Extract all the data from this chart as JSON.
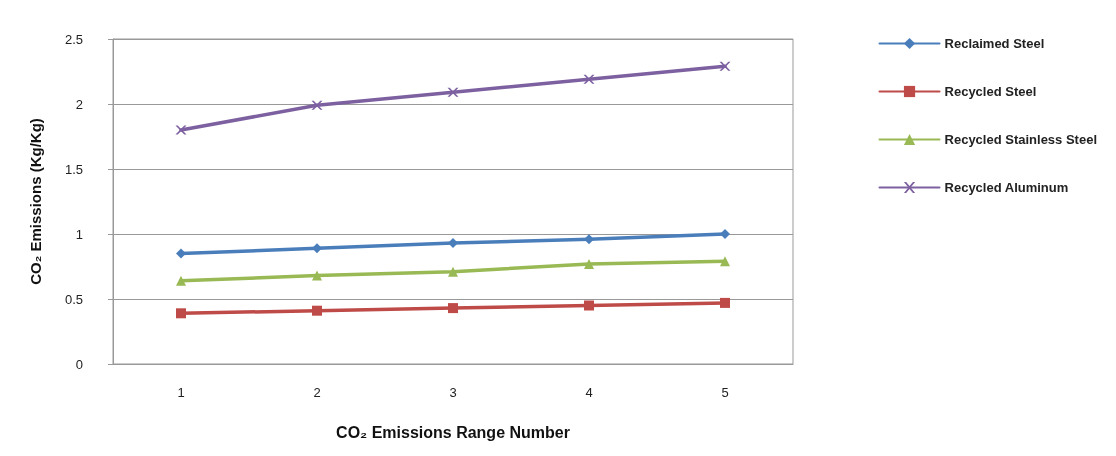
{
  "chart_data": {
    "type": "line",
    "xlabel": "CO₂ Emissions Range Number",
    "ylabel": "CO₂ Emissions (Kg/Kg)",
    "categories": [
      "1",
      "2",
      "3",
      "4",
      "5"
    ],
    "series": [
      {
        "name": "Reclaimed Steel",
        "color": "#4a7ebb",
        "marker": "diamond",
        "values": [
          0.85,
          0.89,
          0.93,
          0.96,
          1.0
        ]
      },
      {
        "name": "Recycled Steel",
        "color": "#be4b48",
        "marker": "square",
        "values": [
          0.39,
          0.41,
          0.43,
          0.45,
          0.47
        ]
      },
      {
        "name": "Recycled Stainless Steel",
        "color": "#98b954",
        "marker": "triangle",
        "values": [
          0.64,
          0.68,
          0.71,
          0.77,
          0.79
        ]
      },
      {
        "name": "Recycled Aluminum",
        "color": "#7d60a0",
        "marker": "cross",
        "values": [
          1.8,
          1.99,
          2.09,
          2.19,
          2.29
        ]
      }
    ],
    "ylim": [
      0,
      2.5
    ],
    "yticks": [
      0,
      0.5,
      1,
      1.5,
      2,
      2.5
    ],
    "grid": "y",
    "legend": "right",
    "line_style": "solid"
  }
}
